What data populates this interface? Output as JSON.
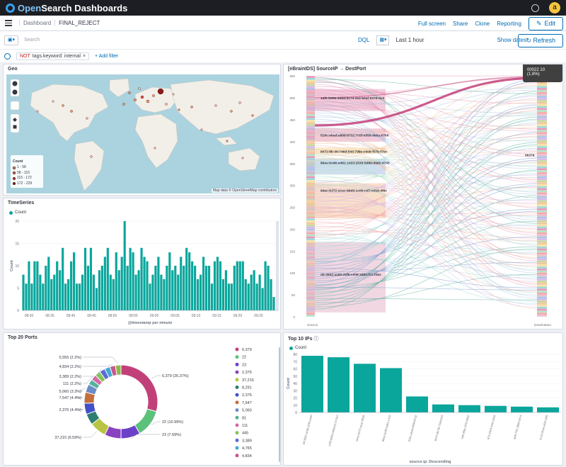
{
  "app": {
    "brand_open": "Open",
    "brand_rest": "Search Dashboards",
    "avatar_letter": "a"
  },
  "nav": {
    "breadcrumbs": [
      "Dashboard",
      "FINAL_REJECT"
    ],
    "actions": [
      "Full screen",
      "Share",
      "Clone",
      "Reporting"
    ],
    "edit_label": "Edit"
  },
  "query": {
    "placeholder": "Search",
    "language": "DQL",
    "time_range": "Last 1 hour",
    "show_dates": "Show dates",
    "refresh_label": "Refresh"
  },
  "filters": {
    "pill_prefix": "NOT",
    "pill_text": "tags.keyword: internal",
    "add_label": "+ Add filter"
  },
  "panels": {
    "geo": {
      "title": "Geo",
      "legend_title": "Count",
      "legend": [
        {
          "label": "1 - 58",
          "color": "#f6c9b0"
        },
        {
          "label": "58 - 115",
          "color": "#ef9a72"
        },
        {
          "label": "115 - 172",
          "color": "#d9534f"
        },
        {
          "label": "172 - 229",
          "color": "#8b1a1a"
        }
      ],
      "attribution": "Map data © OpenStreetMap contributors"
    },
    "sankey": {
      "title": "[eBrainIDS] SourceIP → DestPort",
      "tooltip": "00022 10 (1.8%)",
      "source_label": "Source",
      "dest_label": "Destination",
      "node_labels": [
        "14f0:b955:d4b6:6174:3e2:54af:6376:dc0",
        "516c:ebad:e808:8732:7c5f:e559:de0a:6768",
        "8472:8b:36:746d:543:798e:c0eb:f37b:f7ec",
        "89ee:bc96:ed61:1433:2530:5d89:d680:475b",
        "94ec:b372:acac:96d9:1c0b:cd7:cd16:4f4c",
        "d4:3552:a180:20f5:ce09:3494:fc1:fd4c"
      ],
      "dest_labels": [
        "00022",
        "06379"
      ],
      "y_ticks": [
        0,
        50,
        100,
        150,
        200,
        250,
        300,
        350,
        400,
        450,
        500,
        550
      ]
    },
    "timeseries": {
      "title": "TimeSeries",
      "legend_label": "Count",
      "color": "#0aa69c"
    },
    "ports": {
      "title": "Top 20 Ports"
    },
    "ips": {
      "title": "Top 10 IPs",
      "legend_label": "Count",
      "color": "#0aa69c"
    }
  },
  "chart_data": [
    {
      "type": "bar",
      "title": "TimeSeries",
      "xlabel": "@timestamp per minute",
      "ylabel": "Count",
      "ylim": [
        0,
        20
      ],
      "y_ticks": [
        0,
        5,
        10,
        15,
        20
      ],
      "x_ticks": [
        "08:30",
        "08:35",
        "08:40",
        "08:45",
        "08:50",
        "08:55",
        "09:00",
        "09:05",
        "09:10",
        "09:15",
        "09:20",
        "09:25"
      ],
      "series": [
        {
          "name": "Count",
          "values": [
            8,
            6,
            11,
            6,
            11,
            11,
            8,
            6,
            10,
            12,
            7,
            8,
            11,
            9,
            14,
            6,
            7,
            11,
            13,
            6,
            6,
            8,
            14,
            10,
            14,
            8,
            5,
            9,
            10,
            12,
            14,
            8,
            7,
            13,
            9,
            12,
            20,
            10,
            14,
            13,
            8,
            9,
            14,
            12,
            11,
            6,
            8,
            10,
            12,
            8,
            7,
            10,
            13,
            9,
            10,
            8,
            12,
            10,
            14,
            13,
            11,
            10,
            7,
            8,
            12,
            10,
            10,
            6,
            11,
            12,
            11,
            7,
            9,
            6,
            6,
            10,
            11,
            11,
            11,
            7,
            6,
            8,
            9,
            6,
            8,
            5,
            11,
            10,
            7,
            3
          ]
        }
      ]
    },
    {
      "type": "pie",
      "title": "Top 20 Ports",
      "categories": [
        "6,379",
        "22",
        "23",
        "2,375",
        "37,215",
        "8,291",
        "2,376",
        "7,547",
        "5,060",
        "81",
        "111",
        "445",
        "3,389",
        "4,765",
        "4,834",
        "5,555"
      ],
      "values": [
        26.37,
        10.99,
        7.69,
        6.59,
        6.59,
        4.4,
        4.4,
        4.4,
        3.3,
        2.2,
        2.2,
        2.2,
        2.2,
        2.2,
        2.2,
        2.2
      ],
      "colors": [
        "#c2407a",
        "#5cc17a",
        "#6b42c7",
        "#8a43c0",
        "#b9c443",
        "#2e7d71",
        "#4250c7",
        "#c46e3c",
        "#6b8cc7",
        "#54b399",
        "#d66aa4",
        "#86c45a",
        "#5a6bd6",
        "#47a6d6",
        "#c45a8f",
        "#8fb84a"
      ],
      "slice_labels": [
        {
          "text": "6,379 (26.37%)",
          "side": "right"
        },
        {
          "text": "22 (10.99%)",
          "side": "right"
        },
        {
          "text": "23 (7.69%)",
          "side": "right"
        },
        {
          "text": "37,215 (6.59%)",
          "side": "left"
        },
        {
          "text": "2,376 (4.4%)",
          "side": "left"
        },
        {
          "text": "7,547 (4.4%)",
          "side": "left"
        },
        {
          "text": "5,060 (3.3%)",
          "side": "left"
        },
        {
          "text": "111 (2.2%)",
          "side": "left"
        },
        {
          "text": "3,389 (2.2%)",
          "side": "left"
        },
        {
          "text": "4,834 (2.2%)",
          "side": "left"
        },
        {
          "text": "5,555 (2.2%)",
          "side": "left"
        }
      ],
      "legend_entries": [
        "6,379",
        "22",
        "23",
        "2,375",
        "37,215",
        "8,291",
        "2,376",
        "7,547",
        "5,060",
        "81",
        "111",
        "445",
        "3,389",
        "4,765",
        "4,834"
      ]
    },
    {
      "type": "bar",
      "title": "Top 10 IPs",
      "xlabel": "source.ip: Descending",
      "ylabel": "Count",
      "ylim": [
        0,
        80
      ],
      "y_ticks": [
        0,
        10,
        20,
        30,
        40,
        50,
        60,
        70,
        80
      ],
      "categories": [
        "d4:3552:a180:20f5:ce09",
        "14f0:b955:d4b6:6174:3e2",
        "94ec:b372:acac:96d9",
        "89ee:bc96:ed61:1433",
        "516c:ebad:e808:8732",
        "8472:8b:36:746d:543",
        "7d8:489c:3f70:9652",
        "872:49e9:4f4b:33d4",
        "a0fe:791:3884:d7c4",
        "2c19:2b4e:e69f:16f5"
      ],
      "series": [
        {
          "name": "Count",
          "values": [
            78,
            76,
            67,
            61,
            22,
            11,
            10,
            9,
            8,
            7
          ]
        }
      ]
    }
  ]
}
